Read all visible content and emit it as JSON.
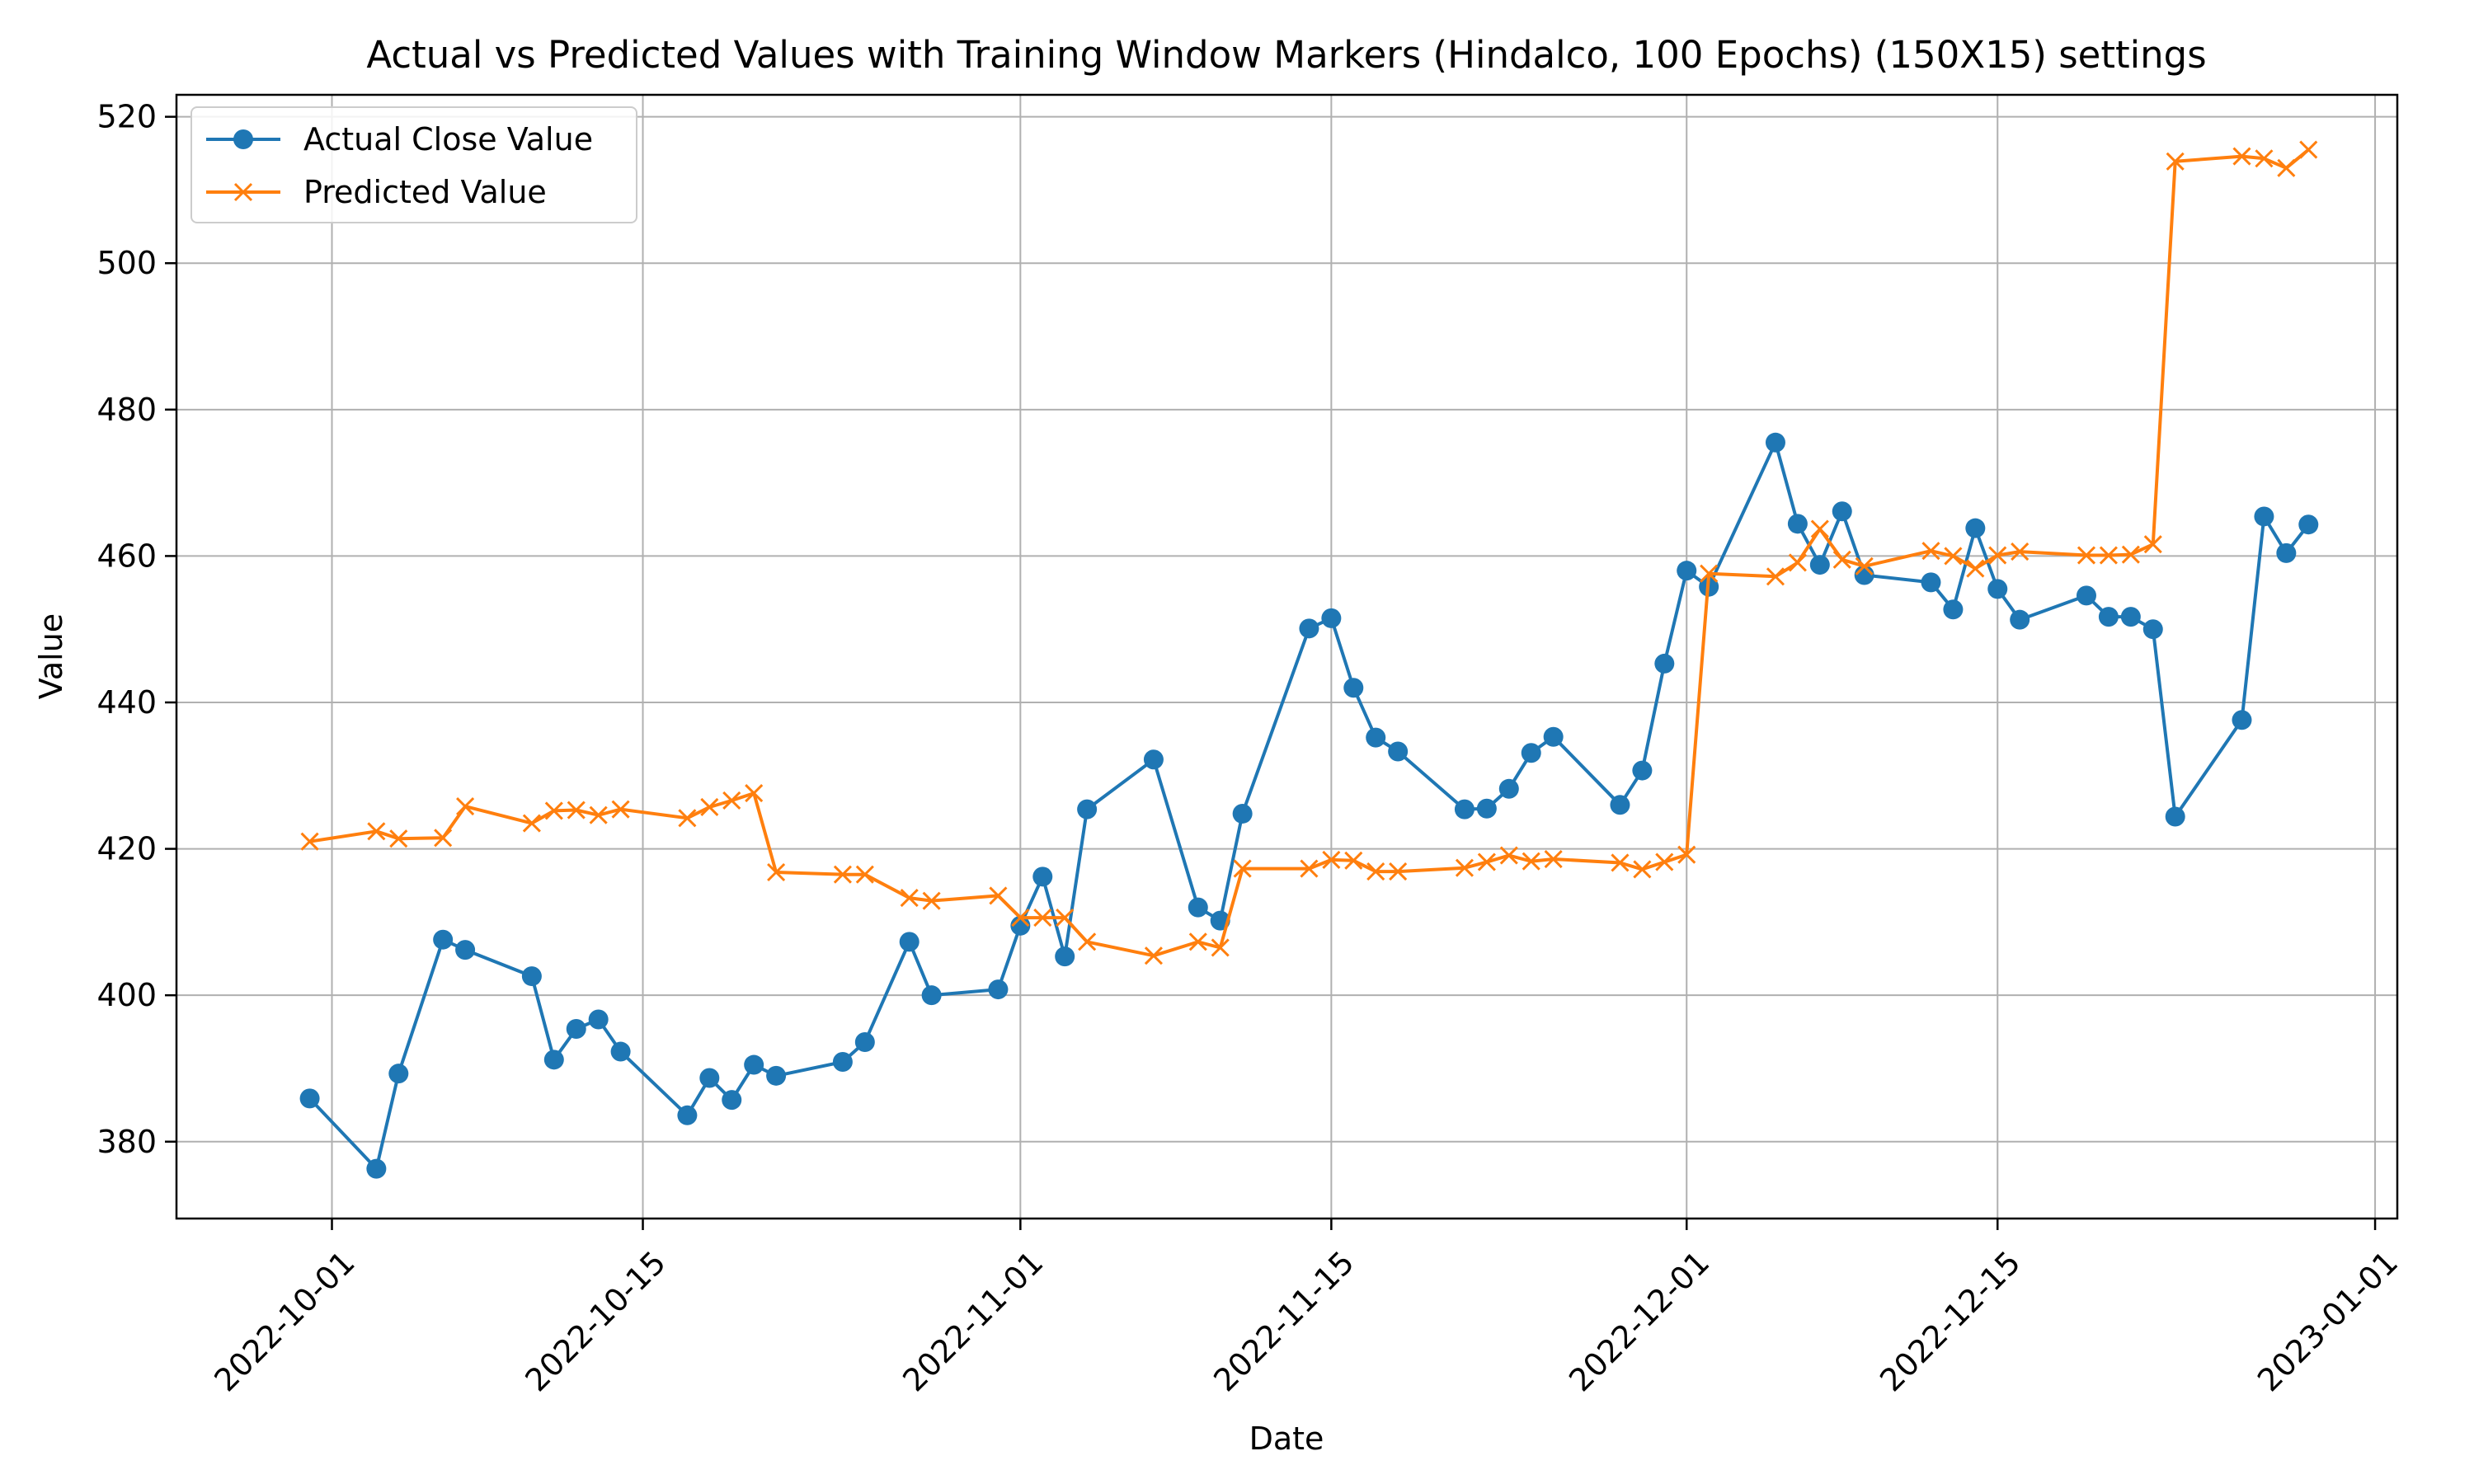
{
  "chart_data": {
    "type": "line",
    "title": "Actual vs Predicted Values with Training Window Markers (Hindalco, 100 Epochs) (150X15) settings",
    "xlabel": "Date",
    "ylabel": "Value",
    "xlim": [
      "2022-09-24",
      "2023-01-02"
    ],
    "ylim": [
      369.5,
      523
    ],
    "x_ticks": [
      "2022-10-01",
      "2022-10-15",
      "2022-11-01",
      "2022-11-15",
      "2022-12-01",
      "2022-12-15",
      "2023-01-01"
    ],
    "y_ticks": [
      380,
      400,
      420,
      440,
      460,
      480,
      500,
      520
    ],
    "grid": true,
    "legend_position": "top-left",
    "series": [
      {
        "name": "Actual Close Value",
        "color": "#1f77b4",
        "marker": "circle",
        "points": [
          [
            "2022-09-30",
            385.9
          ],
          [
            "2022-10-03",
            376.3
          ],
          [
            "2022-10-04",
            389.3
          ],
          [
            "2022-10-06",
            407.6
          ],
          [
            "2022-10-07",
            406.2
          ],
          [
            "2022-10-10",
            402.6
          ],
          [
            "2022-10-11",
            391.2
          ],
          [
            "2022-10-12",
            395.4
          ],
          [
            "2022-10-13",
            396.7
          ],
          [
            "2022-10-14",
            392.3
          ],
          [
            "2022-10-17",
            383.6
          ],
          [
            "2022-10-18",
            388.7
          ],
          [
            "2022-10-19",
            385.7
          ],
          [
            "2022-10-20",
            390.5
          ],
          [
            "2022-10-21",
            389.0
          ],
          [
            "2022-10-24",
            390.9
          ],
          [
            "2022-10-25",
            393.6
          ],
          [
            "2022-10-27",
            407.3
          ],
          [
            "2022-10-28",
            400.0
          ],
          [
            "2022-10-31",
            400.8
          ],
          [
            "2022-11-01",
            409.5
          ],
          [
            "2022-11-02",
            416.2
          ],
          [
            "2022-11-03",
            405.3
          ],
          [
            "2022-11-04",
            425.4
          ],
          [
            "2022-11-07",
            432.2
          ],
          [
            "2022-11-09",
            412.0
          ],
          [
            "2022-11-10",
            410.2
          ],
          [
            "2022-11-11",
            424.8
          ],
          [
            "2022-11-14",
            450.1
          ],
          [
            "2022-11-15",
            451.5
          ],
          [
            "2022-11-16",
            442.0
          ],
          [
            "2022-11-17",
            435.2
          ],
          [
            "2022-11-18",
            433.3
          ],
          [
            "2022-11-21",
            425.4
          ],
          [
            "2022-11-22",
            425.5
          ],
          [
            "2022-11-23",
            428.2
          ],
          [
            "2022-11-24",
            433.1
          ],
          [
            "2022-11-25",
            435.3
          ],
          [
            "2022-11-28",
            426.0
          ],
          [
            "2022-11-29",
            430.7
          ],
          [
            "2022-11-30",
            445.3
          ],
          [
            "2022-12-01",
            458.0
          ],
          [
            "2022-12-02",
            455.8
          ],
          [
            "2022-12-05",
            475.5
          ],
          [
            "2022-12-06",
            464.4
          ],
          [
            "2022-12-07",
            458.8
          ],
          [
            "2022-12-08",
            466.1
          ],
          [
            "2022-12-09",
            457.4
          ],
          [
            "2022-12-12",
            456.4
          ],
          [
            "2022-12-13",
            452.7
          ],
          [
            "2022-12-14",
            463.8
          ],
          [
            "2022-12-15",
            455.5
          ],
          [
            "2022-12-16",
            451.3
          ],
          [
            "2022-12-19",
            454.6
          ],
          [
            "2022-12-20",
            451.7
          ],
          [
            "2022-12-21",
            451.7
          ],
          [
            "2022-12-22",
            450.0
          ],
          [
            "2022-12-23",
            424.4
          ],
          [
            "2022-12-26",
            437.6
          ],
          [
            "2022-12-27",
            465.4
          ],
          [
            "2022-12-28",
            460.4
          ],
          [
            "2022-12-29",
            464.3
          ]
        ]
      },
      {
        "name": "Predicted Value",
        "color": "#ff7f0e",
        "marker": "x",
        "points": [
          [
            "2022-09-30",
            421.0
          ],
          [
            "2022-10-03",
            422.4
          ],
          [
            "2022-10-04",
            421.4
          ],
          [
            "2022-10-06",
            421.5
          ],
          [
            "2022-10-07",
            425.8
          ],
          [
            "2022-10-10",
            423.5
          ],
          [
            "2022-10-11",
            425.2
          ],
          [
            "2022-10-12",
            425.3
          ],
          [
            "2022-10-13",
            424.6
          ],
          [
            "2022-10-14",
            425.4
          ],
          [
            "2022-10-17",
            424.2
          ],
          [
            "2022-10-18",
            425.7
          ],
          [
            "2022-10-19",
            426.6
          ],
          [
            "2022-10-20",
            427.6
          ],
          [
            "2022-10-21",
            416.8
          ],
          [
            "2022-10-24",
            416.5
          ],
          [
            "2022-10-25",
            416.5
          ],
          [
            "2022-10-27",
            413.3
          ],
          [
            "2022-10-28",
            412.9
          ],
          [
            "2022-10-31",
            413.6
          ],
          [
            "2022-11-01",
            410.6
          ],
          [
            "2022-11-02",
            410.6
          ],
          [
            "2022-11-03",
            410.6
          ],
          [
            "2022-11-04",
            407.3
          ],
          [
            "2022-11-07",
            405.4
          ],
          [
            "2022-11-09",
            407.3
          ],
          [
            "2022-11-10",
            406.5
          ],
          [
            "2022-11-11",
            417.3
          ],
          [
            "2022-11-14",
            417.3
          ],
          [
            "2022-11-15",
            418.5
          ],
          [
            "2022-11-16",
            418.4
          ],
          [
            "2022-11-17",
            416.9
          ],
          [
            "2022-11-18",
            416.9
          ],
          [
            "2022-11-21",
            417.4
          ],
          [
            "2022-11-22",
            418.2
          ],
          [
            "2022-11-23",
            419.1
          ],
          [
            "2022-11-24",
            418.3
          ],
          [
            "2022-11-25",
            418.6
          ],
          [
            "2022-11-28",
            418.1
          ],
          [
            "2022-11-29",
            417.2
          ],
          [
            "2022-11-30",
            418.2
          ],
          [
            "2022-12-01",
            419.2
          ],
          [
            "2022-12-02",
            457.6
          ],
          [
            "2022-12-05",
            457.2
          ],
          [
            "2022-12-06",
            459.1
          ],
          [
            "2022-12-07",
            463.7
          ],
          [
            "2022-12-08",
            459.5
          ],
          [
            "2022-12-09",
            458.6
          ],
          [
            "2022-12-12",
            460.7
          ],
          [
            "2022-12-13",
            460.0
          ],
          [
            "2022-12-14",
            458.3
          ],
          [
            "2022-12-15",
            460.1
          ],
          [
            "2022-12-16",
            460.6
          ],
          [
            "2022-12-19",
            460.1
          ],
          [
            "2022-12-20",
            460.1
          ],
          [
            "2022-12-21",
            460.2
          ],
          [
            "2022-12-22",
            461.6
          ],
          [
            "2022-12-23",
            513.9
          ],
          [
            "2022-12-26",
            514.6
          ],
          [
            "2022-12-27",
            514.3
          ],
          [
            "2022-12-28",
            513.0
          ],
          [
            "2022-12-29",
            515.5
          ]
        ]
      }
    ]
  }
}
